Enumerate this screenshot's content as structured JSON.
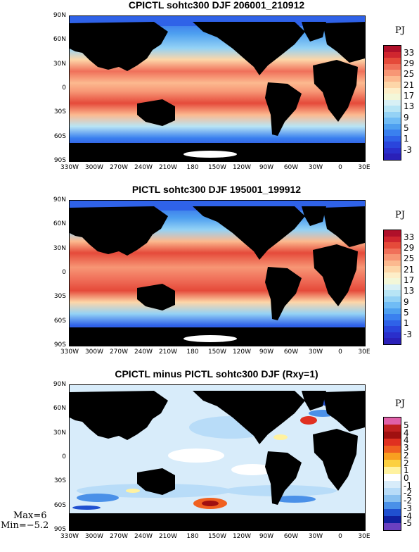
{
  "panels": [
    {
      "title": "CPICTL sohtc300 DJF 206001_210912",
      "unit": "PJ",
      "colorbar_labels": [
        "33",
        "29",
        "25",
        "21",
        "17",
        "13",
        "9",
        "5",
        "1",
        "-3"
      ],
      "colorbar_colors": [
        "#b0102a",
        "#d0262f",
        "#e54a3a",
        "#f0705a",
        "#f79675",
        "#fcb98f",
        "#fdd6a8",
        "#fdeec8",
        "#f3f7d8",
        "#d8f0f5",
        "#b8e5f5",
        "#94d2f5",
        "#70bcf5",
        "#4ea0f0",
        "#3a80ef",
        "#2f62e8",
        "#2a45dc",
        "#2a2fcc",
        "#2a20b8"
      ],
      "y_labels": [
        "90N",
        "60N",
        "30N",
        "0",
        "30S",
        "60S",
        "90S"
      ],
      "x_labels": [
        "330W",
        "300W",
        "270W",
        "240W",
        "210W",
        "180",
        "150W",
        "120W",
        "90W",
        "60W",
        "30W",
        "0",
        "30E"
      ]
    },
    {
      "title": "PICTL sohtc300 DJF 195001_199912",
      "unit": "PJ",
      "colorbar_labels": [
        "33",
        "29",
        "25",
        "21",
        "17",
        "13",
        "9",
        "5",
        "1",
        "-3"
      ],
      "colorbar_colors": [
        "#b0102a",
        "#d0262f",
        "#e54a3a",
        "#f0705a",
        "#f79675",
        "#fcb98f",
        "#fdd6a8",
        "#fdeec8",
        "#f3f7d8",
        "#d8f0f5",
        "#b8e5f5",
        "#94d2f5",
        "#70bcf5",
        "#4ea0f0",
        "#3a80ef",
        "#2f62e8",
        "#2a45dc",
        "#2a2fcc",
        "#2a20b8"
      ],
      "y_labels": [
        "90N",
        "60N",
        "30N",
        "0",
        "30S",
        "60S",
        "90S"
      ],
      "x_labels": [
        "330W",
        "300W",
        "270W",
        "240W",
        "210W",
        "180",
        "150W",
        "120W",
        "90W",
        "60W",
        "30W",
        "0",
        "30E"
      ]
    },
    {
      "title": "CPICTL minus PICTL sohtc300 DJF (Rxy=1)",
      "unit": "PJ",
      "colorbar_labels": [
        "5",
        "4",
        "4",
        "3",
        "2",
        "2",
        "1",
        "0",
        "-1",
        "-2",
        "-2",
        "-3",
        "-4",
        "-5"
      ],
      "colorbar_colors": [
        "#e060a8",
        "#c02020",
        "#a01010",
        "#e03020",
        "#f06020",
        "#f8a020",
        "#fcd040",
        "#fff2a0",
        "#ffffff",
        "#d8ecfa",
        "#b8dcf8",
        "#88c0f0",
        "#4a90e8",
        "#2050d0",
        "#1020a0",
        "#6a40c0"
      ],
      "y_labels": [
        "90N",
        "60N",
        "30N",
        "0",
        "30S",
        "60S",
        "90S"
      ],
      "x_labels": [
        "330W",
        "300W",
        "270W",
        "240W",
        "210W",
        "180",
        "150W",
        "120W",
        "90W",
        "60W",
        "30W",
        "0",
        "30E"
      ],
      "max_label": "Max=6",
      "min_label": "Min=−5.2"
    }
  ]
}
